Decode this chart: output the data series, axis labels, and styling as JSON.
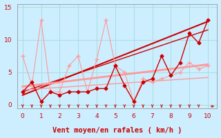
{
  "background_color": "#cceeff",
  "grid_color": "#aadddd",
  "xlabel": "Vent moyen/en rafales ( km/h )",
  "xlabel_color": "#cc0000",
  "xlabel_fontsize": 7.5,
  "ylim": [
    -0.5,
    15.5
  ],
  "xlim": [
    -0.3,
    10.5
  ],
  "yticks": [
    0,
    5,
    10,
    15
  ],
  "xticks": [
    0,
    1,
    2,
    3,
    4,
    5,
    6,
    7,
    8,
    9,
    10
  ],
  "tick_color": "#cc0000",
  "tick_fontsize": 6.5,
  "line1_x": [
    0,
    0.5,
    1.0,
    1.5,
    2.0,
    2.5,
    3.0,
    3.5,
    4.0,
    4.5,
    5.0,
    5.5,
    6.0,
    6.5,
    7.0,
    7.5,
    8.0,
    8.5,
    9.0,
    9.5,
    10.0
  ],
  "line1_y": [
    2.0,
    3.5,
    0.5,
    2.0,
    1.5,
    2.0,
    2.0,
    2.0,
    2.5,
    2.5,
    6.0,
    3.0,
    0.5,
    3.5,
    4.0,
    7.5,
    4.5,
    6.5,
    11.0,
    9.5,
    13.0
  ],
  "line1_color": "#cc0000",
  "line1_marker": "D",
  "line1_markersize": 2.5,
  "line1_linewidth": 1.0,
  "line2_x": [
    0,
    0.5,
    1.0,
    1.5,
    2.0,
    2.5,
    3.0,
    3.5,
    4.0,
    4.5,
    5.0,
    5.5,
    6.0,
    6.5,
    7.0,
    7.5,
    8.0,
    8.5,
    9.0,
    9.5,
    10.0
  ],
  "line2_y": [
    7.5,
    3.0,
    13.0,
    2.0,
    2.0,
    6.0,
    7.5,
    2.0,
    7.0,
    13.0,
    6.0,
    5.0,
    0.5,
    4.0,
    3.5,
    4.0,
    4.5,
    5.0,
    6.5,
    5.5,
    6.0
  ],
  "line2_color": "#ff9999",
  "line2_marker": "+",
  "line2_markersize": 4,
  "line2_linewidth": 0.8,
  "trend1_x": [
    0,
    10
  ],
  "trend1_y": [
    1.5,
    12.8
  ],
  "trend1_color": "#cc0000",
  "trend1_linewidth": 1.5,
  "trend2_x": [
    0,
    10
  ],
  "trend2_y": [
    2.0,
    11.5
  ],
  "trend2_color": "#cc0000",
  "trend2_linewidth": 1.0,
  "trend3_x": [
    0,
    10
  ],
  "trend3_y": [
    2.8,
    6.2
  ],
  "trend3_color": "#ff9999",
  "trend3_linewidth": 2.0,
  "trend4_x": [
    0,
    10
  ],
  "trend4_y": [
    2.3,
    4.2
  ],
  "trend4_color": "#ff9999",
  "trend4_linewidth": 1.0,
  "arrow_x_positions": [
    0.0,
    0.5,
    1.0,
    1.5,
    2.0,
    2.5,
    3.0,
    3.5,
    4.0,
    4.5,
    5.0,
    5.5,
    6.0,
    6.5,
    7.0,
    7.5,
    8.0,
    8.5,
    9.0,
    9.5
  ],
  "arrow_color": "#cc0000",
  "spine_color": "#888888"
}
